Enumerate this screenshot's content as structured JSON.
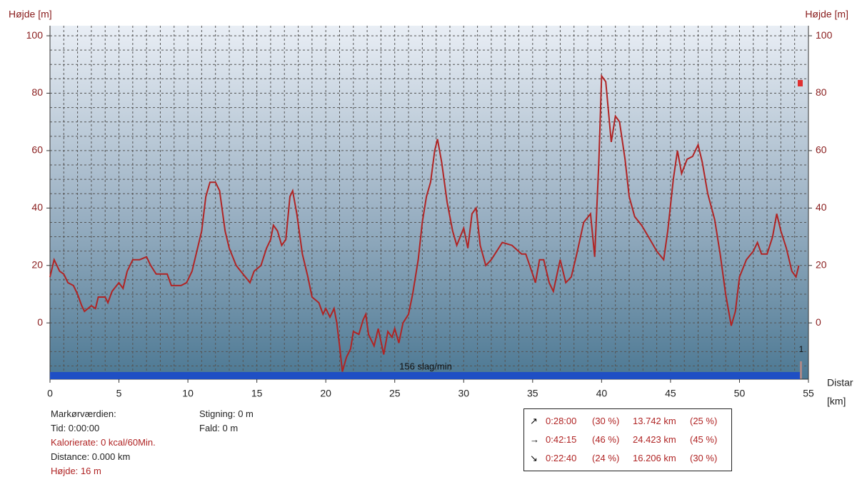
{
  "chart_data": {
    "type": "line",
    "y_label": "Højde [m]",
    "y2_label": "Højde [m]",
    "x_label": "Distar",
    "x_unit": "[km]",
    "band_label": "156 slag/min",
    "marker_label": "1",
    "color": "#b02424",
    "grid": true,
    "xlim": [
      0,
      55
    ],
    "xticks": [
      0,
      5,
      10,
      15,
      20,
      25,
      30,
      35,
      40,
      45,
      50,
      55
    ],
    "ylim": [
      -19.6,
      103.5
    ],
    "yticks": [
      0,
      20,
      40,
      60,
      80,
      100
    ],
    "x": [
      0,
      0.3,
      0.7,
      1,
      1.3,
      1.7,
      2,
      2.3,
      2.5,
      3,
      3.3,
      3.5,
      4,
      4.2,
      4.5,
      5,
      5.3,
      5.6,
      6,
      6.5,
      7,
      7.3,
      7.7,
      8,
      8.5,
      8.8,
      9.5,
      9.9,
      10.3,
      11,
      11.3,
      11.6,
      12,
      12.3,
      12.7,
      13,
      13.5,
      14,
      14.5,
      14.8,
      15.3,
      15.7,
      16,
      16.2,
      16.5,
      16.8,
      17.1,
      17.4,
      17.6,
      17.9,
      18.3,
      18.7,
      19,
      19.5,
      19.8,
      20,
      20.3,
      20.6,
      20.8,
      21,
      21.2,
      21.5,
      21.8,
      22,
      22.4,
      22.7,
      22.9,
      23.1,
      23.5,
      23.8,
      24.2,
      24.5,
      24.8,
      25,
      25.3,
      25.6,
      26,
      26.3,
      26.7,
      27,
      27.3,
      27.6,
      27.9,
      28.1,
      28.4,
      28.8,
      29.2,
      29.5,
      30,
      30.3,
      30.6,
      30.9,
      31.2,
      31.6,
      32,
      32.4,
      32.8,
      33.5,
      34.2,
      34.5,
      35,
      35.2,
      35.5,
      35.8,
      36.2,
      36.5,
      37,
      37.4,
      37.8,
      38.2,
      38.7,
      39.2,
      39.5,
      39.8,
      40,
      40.3,
      40.7,
      41,
      41.3,
      41.7,
      42,
      42.4,
      42.9,
      43.4,
      44,
      44.5,
      44.8,
      45.2,
      45.5,
      45.8,
      46.2,
      46.6,
      47,
      47.3,
      47.7,
      48.2,
      48.6,
      49,
      49.4,
      49.7,
      50,
      50.5,
      51,
      51.3,
      51.6,
      52,
      52.4,
      52.7,
      53,
      53.4,
      53.8,
      54.1,
      54.3
    ],
    "values": [
      16,
      22,
      18,
      17,
      14,
      13,
      10,
      6,
      4,
      6,
      5,
      9,
      9,
      7,
      11,
      14,
      12,
      18,
      22,
      22,
      23,
      20,
      17,
      17,
      17,
      13,
      13,
      14,
      18,
      32,
      44,
      49,
      49,
      46,
      32,
      26,
      20,
      17,
      14,
      18,
      20,
      26,
      29,
      34,
      32,
      27,
      29,
      44,
      46,
      38,
      24,
      16,
      9,
      7,
      3,
      5,
      2,
      5,
      0,
      -8,
      -17,
      -12,
      -9,
      -3,
      -4,
      1,
      3,
      -4,
      -8,
      -2,
      -11,
      -3,
      -5,
      -2,
      -7,
      0,
      3,
      10,
      22,
      35,
      44,
      49,
      60,
      64,
      56,
      42,
      32,
      27,
      33,
      26,
      38,
      40,
      27,
      20,
      22,
      25,
      28,
      27,
      24,
      24,
      17,
      14,
      22,
      22,
      14,
      11,
      22,
      14,
      16,
      24,
      35,
      38,
      23,
      56,
      86,
      84,
      63,
      72,
      70,
      57,
      44,
      37,
      34,
      30,
      25,
      22,
      32,
      50,
      60,
      52,
      57,
      58,
      62,
      56,
      45,
      36,
      24,
      10,
      -1,
      4,
      16,
      22,
      25,
      28,
      24,
      24,
      30,
      38,
      32,
      26,
      18,
      16,
      20
    ]
  },
  "cursor": {
    "title": "Markørværdien:",
    "time": "Tid: 0:00:00",
    "calorie": "Kalorierate: 0 kcal/60Min.",
    "distance": "Distance: 0.000 km",
    "height": "Højde: 16 m",
    "climb": "Stigning: 0 m",
    "descent": "Fald: 0 m"
  },
  "summary": {
    "rows": [
      [
        "↗",
        "0:28:00",
        "(30 %)",
        "13.742 km",
        "(25 %)"
      ],
      [
        "→",
        "0:42:15",
        "(46 %)",
        "24.423 km",
        "(45 %)"
      ],
      [
        "↘",
        "0:22:40",
        "(24 %)",
        "16.206 km",
        "(30 %)"
      ]
    ]
  }
}
